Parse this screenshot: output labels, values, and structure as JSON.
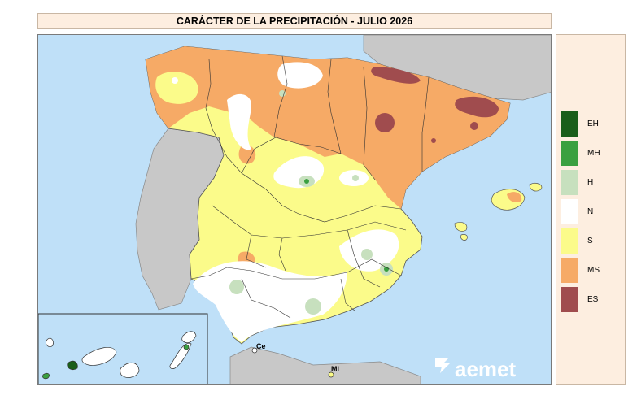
{
  "title": "CARÁCTER DE LA PRECIPITACIÓN - JULIO 2026",
  "legend": {
    "items": [
      {
        "code": "EH",
        "color": "#1a5e1a"
      },
      {
        "code": "MH",
        "color": "#3aa040"
      },
      {
        "code": "H",
        "color": "#c7e0be"
      },
      {
        "code": "N",
        "color": "#ffffff"
      },
      {
        "code": "S",
        "color": "#fbfb8a"
      },
      {
        "code": "MS",
        "color": "#f6aa66"
      },
      {
        "code": "ES",
        "color": "#a04c4e"
      }
    ]
  },
  "map": {
    "labels": {
      "ceuta": "Ce",
      "melilla": "Ml"
    },
    "logo": "aemet"
  }
}
